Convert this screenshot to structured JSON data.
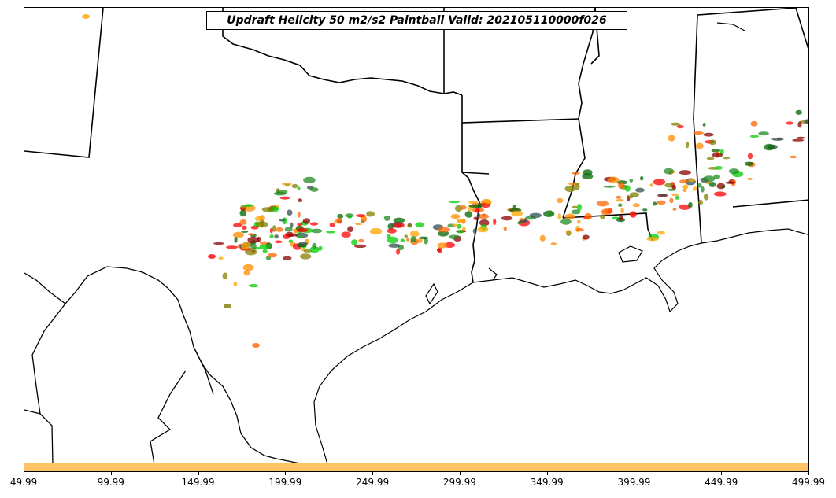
{
  "title": "Updraft Helicity 50 m2/s2 Paintball Valid: 202105110000f026",
  "colorbar": {
    "color": "#ffc466",
    "ticks": [
      "49.99",
      "99.99",
      "149.99",
      "199.99",
      "249.99",
      "299.99",
      "349.99",
      "399.99",
      "449.99",
      "499.99"
    ]
  },
  "map": {
    "features": [
      "state-boundaries",
      "coastline",
      "international-border"
    ],
    "member_colors": [
      "#ff0000",
      "#ff8c00",
      "#ffa500",
      "#8b0000",
      "#00cc00",
      "#228b22",
      "#808000",
      "#006400",
      "#2f4f4f",
      "#ff6600"
    ]
  }
}
